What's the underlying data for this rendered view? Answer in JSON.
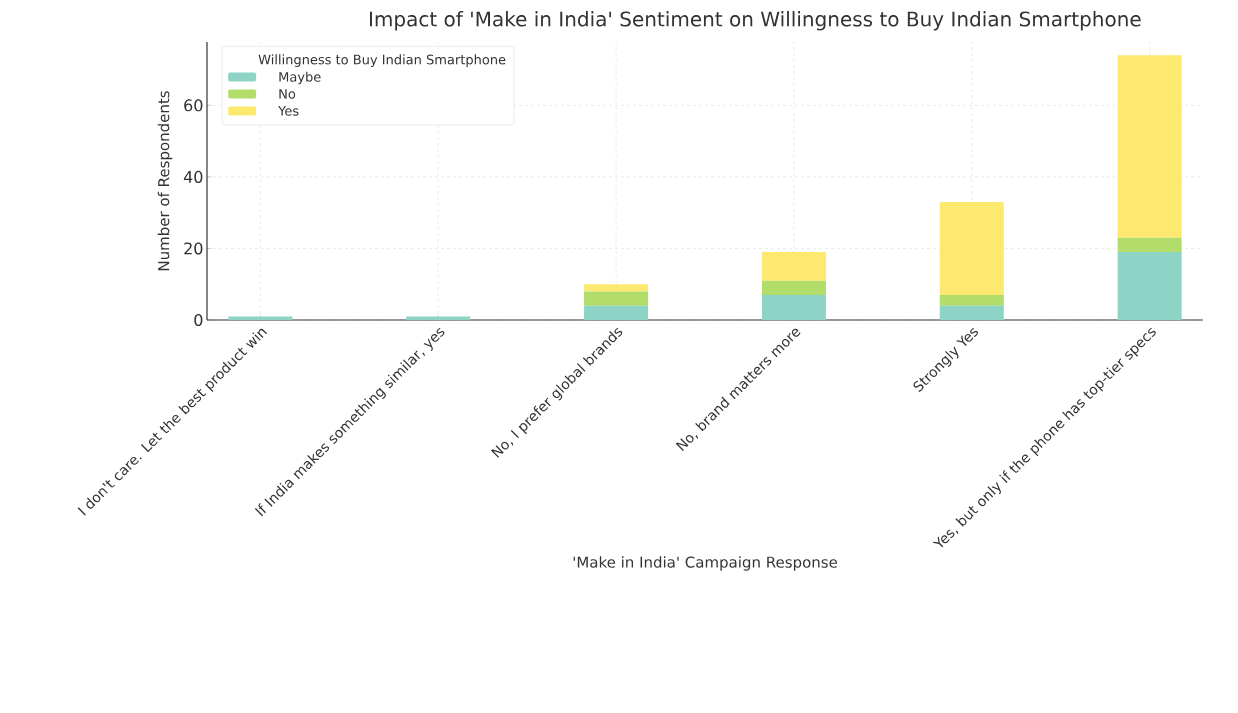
{
  "chart_data": {
    "type": "bar",
    "stacked": true,
    "title": "Impact of 'Make in India' Sentiment on Willingness to Buy Indian Smartphone",
    "xlabel": "'Make in India' Campaign Response",
    "ylabel": "Number of Respondents",
    "legend_title": "Willingness to Buy Indian Smartphone",
    "categories": [
      "I don't care. Let the best product win",
      "If India makes something similar, yes",
      "No, I prefer global brands",
      "No, brand matters more",
      "Strongly Yes",
      "Yes, but only if the phone has top-tier specs"
    ],
    "series": [
      {
        "name": "Maybe",
        "color": "#8ed4c6",
        "values": [
          1,
          1,
          4,
          7,
          4,
          19
        ]
      },
      {
        "name": "No",
        "color": "#b2dd6a",
        "values": [
          0,
          0,
          4,
          4,
          3,
          4
        ]
      },
      {
        "name": "Yes",
        "color": "#fde96f",
        "values": [
          0,
          0,
          2,
          8,
          26,
          51
        ]
      }
    ],
    "ylim": [
      0,
      77.7
    ],
    "yticks": [
      0,
      20,
      40,
      60
    ],
    "grid": true,
    "legend": "top left"
  }
}
